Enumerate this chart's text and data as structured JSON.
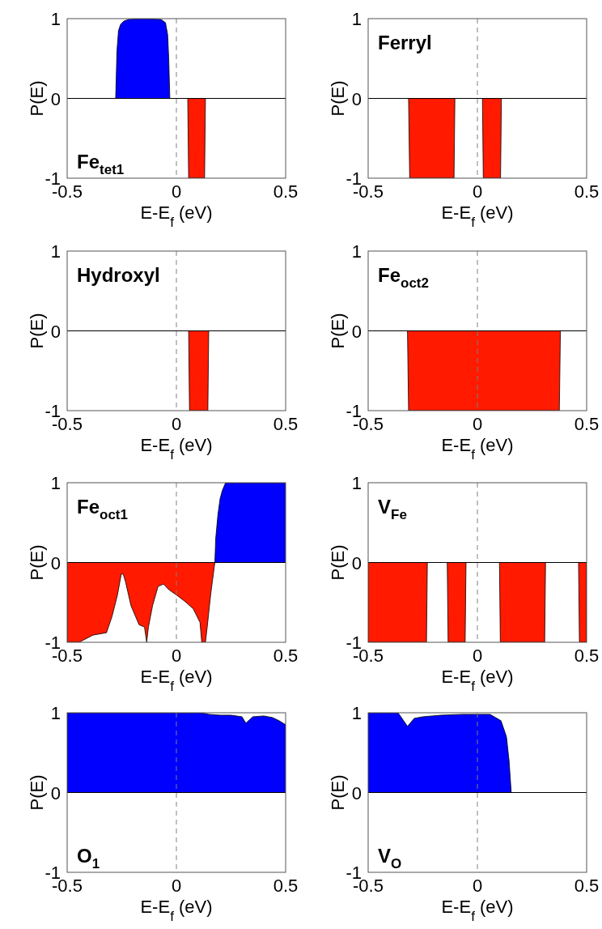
{
  "chart_data": [
    {
      "type": "area",
      "xlabel": "E-E$_{f}$ (eV)",
      "ylabel": "P(E)",
      "xlim": [
        -0.5,
        0.5
      ],
      "ylim": [
        -1,
        1
      ],
      "xticks": [
        -0.5,
        0,
        0.5
      ],
      "yticks": [
        -1,
        0,
        1
      ],
      "annotations": [
        "Fe$_{tet1}$"
      ],
      "ref_lines": [
        {
          "axis": "x",
          "value": 0,
          "line_style": "dashed",
          "color": "#808080"
        },
        {
          "axis": "y",
          "value": 0,
          "line_style": "solid",
          "color": "#000000"
        }
      ],
      "series": [
        {
          "color": "#0000ff",
          "x": [
            -0.278,
            -0.272,
            -0.265,
            -0.255,
            -0.24,
            -0.22,
            -0.15,
            -0.07,
            -0.05,
            -0.04,
            -0.035,
            -0.03
          ],
          "values": [
            0,
            0.6,
            0.85,
            0.93,
            0.97,
            0.99,
            1,
            0.99,
            0.95,
            0.8,
            0.5,
            0
          ]
        },
        {
          "color": "#ff1a00",
          "x": [
            0.052,
            0.056,
            0.129,
            0.133
          ],
          "values": [
            0,
            -1,
            -1,
            0
          ]
        }
      ]
    },
    {
      "type": "area",
      "xlabel": "E-E$_{f}$ (eV)",
      "ylabel": "P(E)",
      "xlim": [
        -0.5,
        0.5
      ],
      "ylim": [
        -1,
        1
      ],
      "xticks": [
        -0.5,
        0,
        0.5
      ],
      "yticks": [
        -1,
        0,
        1
      ],
      "annotations": [
        "Ferryl"
      ],
      "ref_lines": [
        {
          "axis": "x",
          "value": 0,
          "line_style": "dashed",
          "color": "#808080"
        },
        {
          "axis": "y",
          "value": 0,
          "line_style": "solid",
          "color": "#000000"
        }
      ],
      "series": [
        {
          "color": "#ff1a00",
          "x": [
            -0.315,
            -0.31,
            -0.107,
            -0.103,
            0.023,
            0.027,
            0.106,
            0.11
          ],
          "values": [
            0,
            -1,
            -1,
            0,
            0,
            -1,
            -1,
            0
          ]
        }
      ]
    },
    {
      "type": "area",
      "xlabel": "E-E$_{f}$ (eV)",
      "ylabel": "P(E)",
      "xlim": [
        -0.5,
        0.5
      ],
      "ylim": [
        -1,
        1
      ],
      "xticks": [
        -0.5,
        0,
        0.5
      ],
      "yticks": [
        -1,
        0,
        1
      ],
      "annotations": [
        "Hydroxyl"
      ],
      "ref_lines": [
        {
          "axis": "x",
          "value": 0,
          "line_style": "dashed",
          "color": "#808080"
        },
        {
          "axis": "y",
          "value": 0,
          "line_style": "solid",
          "color": "#000000"
        }
      ],
      "series": [
        {
          "color": "#ff1a00",
          "x": [
            0.056,
            0.06,
            0.144,
            0.148
          ],
          "values": [
            0,
            -1,
            -1,
            0
          ]
        }
      ]
    },
    {
      "type": "area",
      "xlabel": "E-E$_{f}$ (eV)",
      "ylabel": "P(E)",
      "xlim": [
        -0.5,
        0.5
      ],
      "ylim": [
        -1,
        1
      ],
      "xticks": [
        -0.5,
        0,
        0.5
      ],
      "yticks": [
        -1,
        0,
        1
      ],
      "annotations": [
        "Fe$_{oct2}$"
      ],
      "ref_lines": [
        {
          "axis": "x",
          "value": 0,
          "line_style": "dashed",
          "color": "#808080"
        },
        {
          "axis": "y",
          "value": 0,
          "line_style": "solid",
          "color": "#000000"
        }
      ],
      "series": [
        {
          "color": "#ff1a00",
          "x": [
            -0.32,
            -0.315,
            0.375,
            0.38
          ],
          "values": [
            0,
            -1,
            -1,
            0
          ]
        }
      ]
    },
    {
      "type": "area",
      "xlabel": "E-E$_{f}$ (eV)",
      "ylabel": "P(E)",
      "xlim": [
        -0.5,
        0.5
      ],
      "ylim": [
        -1,
        1
      ],
      "xticks": [
        -0.5,
        0,
        0.5
      ],
      "yticks": [
        -1,
        0,
        1
      ],
      "annotations": [
        "Fe$_{oct1}$"
      ],
      "ref_lines": [
        {
          "axis": "x",
          "value": 0,
          "line_style": "dashed",
          "color": "#808080"
        },
        {
          "axis": "y",
          "value": 0,
          "line_style": "solid",
          "color": "#000000"
        }
      ],
      "series": [
        {
          "color": "#0000ff",
          "x": [
            0.176,
            0.18,
            0.19,
            0.2,
            0.21,
            0.225,
            0.5
          ],
          "values": [
            0,
            0.3,
            0.6,
            0.8,
            0.9,
            1,
            1
          ]
        },
        {
          "color": "#ff1a00",
          "x": [
            -0.5,
            -0.444,
            -0.431,
            -0.382,
            -0.32,
            -0.295,
            -0.27,
            -0.252,
            -0.243,
            -0.233,
            -0.208,
            -0.171,
            -0.146,
            -0.136,
            -0.128,
            -0.109,
            -0.084,
            -0.059,
            -0.035,
            0.002,
            0.04,
            0.077,
            0.108,
            0.116,
            0.133,
            0.141,
            0.157,
            0.176
          ],
          "values": [
            -1,
            -1,
            -0.98,
            -0.91,
            -0.88,
            -0.68,
            -0.41,
            -0.14,
            -0.15,
            -0.24,
            -0.54,
            -0.78,
            -0.81,
            -1,
            -0.81,
            -0.54,
            -0.3,
            -0.27,
            -0.34,
            -0.41,
            -0.49,
            -0.58,
            -0.75,
            -1,
            -1,
            -0.81,
            -0.4,
            0
          ]
        }
      ]
    },
    {
      "type": "area",
      "xlabel": "E-E$_{f}$ (eV)",
      "ylabel": "P(E)",
      "xlim": [
        -0.5,
        0.5
      ],
      "ylim": [
        -1,
        1
      ],
      "xticks": [
        -0.5,
        0,
        0.5
      ],
      "yticks": [
        -1,
        0,
        1
      ],
      "annotations": [
        "V$_{Fe}$"
      ],
      "ref_lines": [
        {
          "axis": "x",
          "value": 0,
          "line_style": "dashed",
          "color": "#808080"
        },
        {
          "axis": "y",
          "value": 0,
          "line_style": "solid",
          "color": "#000000"
        }
      ],
      "series": [
        {
          "color": "#ff1a00",
          "x": [
            -0.5,
            -0.233,
            -0.229,
            -0.138,
            -0.134,
            -0.056,
            -0.052,
            0.101,
            0.105,
            0.308,
            0.312,
            0.463,
            0.467,
            0.5
          ],
          "values": [
            -1,
            -1,
            0,
            0,
            -1,
            -1,
            0,
            0,
            -1,
            -1,
            0,
            0,
            -1,
            -1
          ]
        }
      ]
    },
    {
      "type": "area",
      "xlabel": "E-E$_{f}$ (eV)",
      "ylabel": "P(E)",
      "xlim": [
        -0.5,
        0.5
      ],
      "ylim": [
        -1,
        1
      ],
      "xticks": [
        -0.5,
        0,
        0.5
      ],
      "yticks": [
        -1,
        0,
        1
      ],
      "annotations": [
        "O$_{1}$"
      ],
      "ref_lines": [
        {
          "axis": "x",
          "value": 0,
          "line_style": "dashed",
          "color": "#808080"
        },
        {
          "axis": "y",
          "value": 0,
          "line_style": "solid",
          "color": "#000000"
        }
      ],
      "series": [
        {
          "color": "#0000ff",
          "x": [
            -0.5,
            0.114,
            0.15,
            0.2,
            0.25,
            0.3,
            0.318,
            0.35,
            0.4,
            0.44,
            0.47,
            0.5
          ],
          "values": [
            1,
            1,
            0.98,
            0.97,
            0.97,
            0.95,
            0.87,
            0.95,
            0.96,
            0.94,
            0.9,
            0.85
          ]
        }
      ]
    },
    {
      "type": "area",
      "xlabel": "E-E$_{f}$ (eV)",
      "ylabel": "P(E)",
      "xlim": [
        -0.5,
        0.5
      ],
      "ylim": [
        -1,
        1
      ],
      "xticks": [
        -0.5,
        0,
        0.5
      ],
      "yticks": [
        -1,
        0,
        1
      ],
      "annotations": [
        "V$_{O}$"
      ],
      "ref_lines": [
        {
          "axis": "x",
          "value": 0,
          "line_style": "dashed",
          "color": "#808080"
        },
        {
          "axis": "y",
          "value": 0,
          "line_style": "solid",
          "color": "#000000"
        }
      ],
      "series": [
        {
          "color": "#0000ff",
          "x": [
            -0.5,
            -0.363,
            -0.32,
            -0.289,
            -0.25,
            -0.165,
            -0.066,
            0.058,
            0.108,
            0.133,
            0.145,
            0.155
          ],
          "values": [
            1,
            1,
            0.83,
            0.93,
            0.95,
            0.97,
            0.98,
            0.98,
            0.9,
            0.7,
            0.4,
            0
          ]
        }
      ]
    }
  ]
}
